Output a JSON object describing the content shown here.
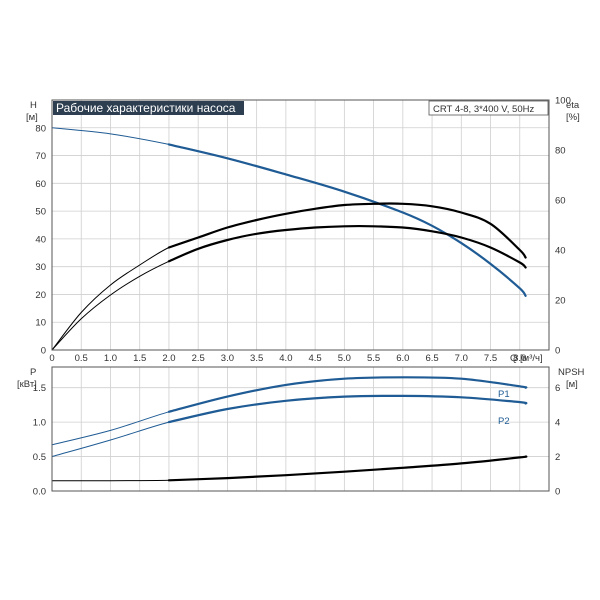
{
  "colors": {
    "blue": "#1f5b94",
    "black": "#000000",
    "grid": "#cfcfcf",
    "title_bg": "#2d3e50",
    "title_fg": "#ffffff"
  },
  "chart_data": [
    {
      "type": "line",
      "title": "Рабочие характеристики насоса",
      "model": "CRT 4-8, 3*400 V, 50Hz",
      "xlabel": "Q [м³/ч]",
      "x_ticks": [
        "0",
        "0.5",
        "1.0",
        "1.5",
        "2.0",
        "2.5",
        "3.0",
        "3.5",
        "4.0",
        "4.5",
        "5.0",
        "5.5",
        "6.0",
        "6.5",
        "7.0",
        "7.5",
        "8.0"
      ],
      "xlim": [
        0,
        8.5
      ],
      "y_left": {
        "label": "H",
        "unit": "[м]",
        "ticks": [
          "0",
          "10",
          "20",
          "30",
          "40",
          "50",
          "60",
          "70",
          "80"
        ],
        "lim": [
          0,
          90
        ]
      },
      "y_right": {
        "label": "eta",
        "unit": "[%]",
        "ticks": [
          "0",
          "20",
          "40",
          "60",
          "80",
          "100"
        ],
        "lim": [
          0,
          100
        ]
      },
      "grid": true,
      "series": [
        {
          "axis": "left",
          "color": "blue",
          "x": [
            0,
            1,
            2,
            3,
            4,
            5,
            6,
            6.5,
            7,
            7.5,
            8,
            8.1
          ],
          "y": [
            80,
            77.8,
            74,
            69,
            63.2,
            57,
            49.5,
            44.7,
            38.5,
            31,
            22.2,
            19.5
          ]
        },
        {
          "axis": "right",
          "color": "black",
          "x": [
            0,
            0.5,
            1,
            1.5,
            2,
            2.5,
            3,
            3.5,
            4,
            4.5,
            5,
            5.5,
            6,
            6.5,
            7,
            7.5,
            8,
            8.1
          ],
          "y": [
            0,
            12.5,
            22,
            29.5,
            35.5,
            40.5,
            44,
            46.5,
            48,
            49,
            49.5,
            49.5,
            49,
            47.5,
            45,
            41,
            35,
            33
          ]
        },
        {
          "axis": "right",
          "color": "black",
          "x": [
            0,
            0.5,
            1,
            1.5,
            2,
            2.5,
            3,
            3.5,
            4,
            4.5,
            5,
            5.5,
            6,
            6.5,
            7,
            7.5,
            8,
            8.1
          ],
          "y": [
            0,
            15,
            26,
            34,
            41,
            45,
            49,
            52,
            54.5,
            56.5,
            58,
            58.5,
            58.5,
            57.5,
            55,
            50.5,
            40,
            37
          ]
        }
      ]
    },
    {
      "type": "line",
      "xlim": [
        0,
        8.5
      ],
      "y_left": {
        "label": "P",
        "unit": "[кВт]",
        "ticks": [
          "0.0",
          "0.5",
          "1.0",
          "1.5"
        ],
        "lim": [
          0,
          1.8
        ]
      },
      "y_right": {
        "label": "NPSH",
        "unit": "[м]",
        "ticks": [
          "0",
          "2",
          "4",
          "6"
        ],
        "lim": [
          0,
          7.2
        ]
      },
      "grid": true,
      "series": [
        {
          "name": "P1",
          "axis": "left",
          "color": "blue",
          "x": [
            0,
            1,
            2,
            3,
            4,
            5,
            6,
            7,
            8,
            8.1
          ],
          "y": [
            0.67,
            0.88,
            1.15,
            1.37,
            1.54,
            1.63,
            1.65,
            1.63,
            1.52,
            1.5
          ]
        },
        {
          "name": "P2",
          "axis": "left",
          "color": "blue",
          "x": [
            0,
            1,
            2,
            3,
            4,
            5,
            6,
            7,
            8,
            8.1
          ],
          "y": [
            0.5,
            0.74,
            1.0,
            1.19,
            1.31,
            1.37,
            1.38,
            1.36,
            1.29,
            1.27
          ]
        },
        {
          "axis": "right",
          "color": "black",
          "x": [
            0,
            1,
            2,
            3,
            4,
            5,
            6,
            7,
            8,
            8.1
          ],
          "y": [
            0.6,
            0.6,
            0.62,
            0.75,
            0.92,
            1.12,
            1.35,
            1.6,
            1.95,
            2.0
          ]
        }
      ]
    }
  ]
}
